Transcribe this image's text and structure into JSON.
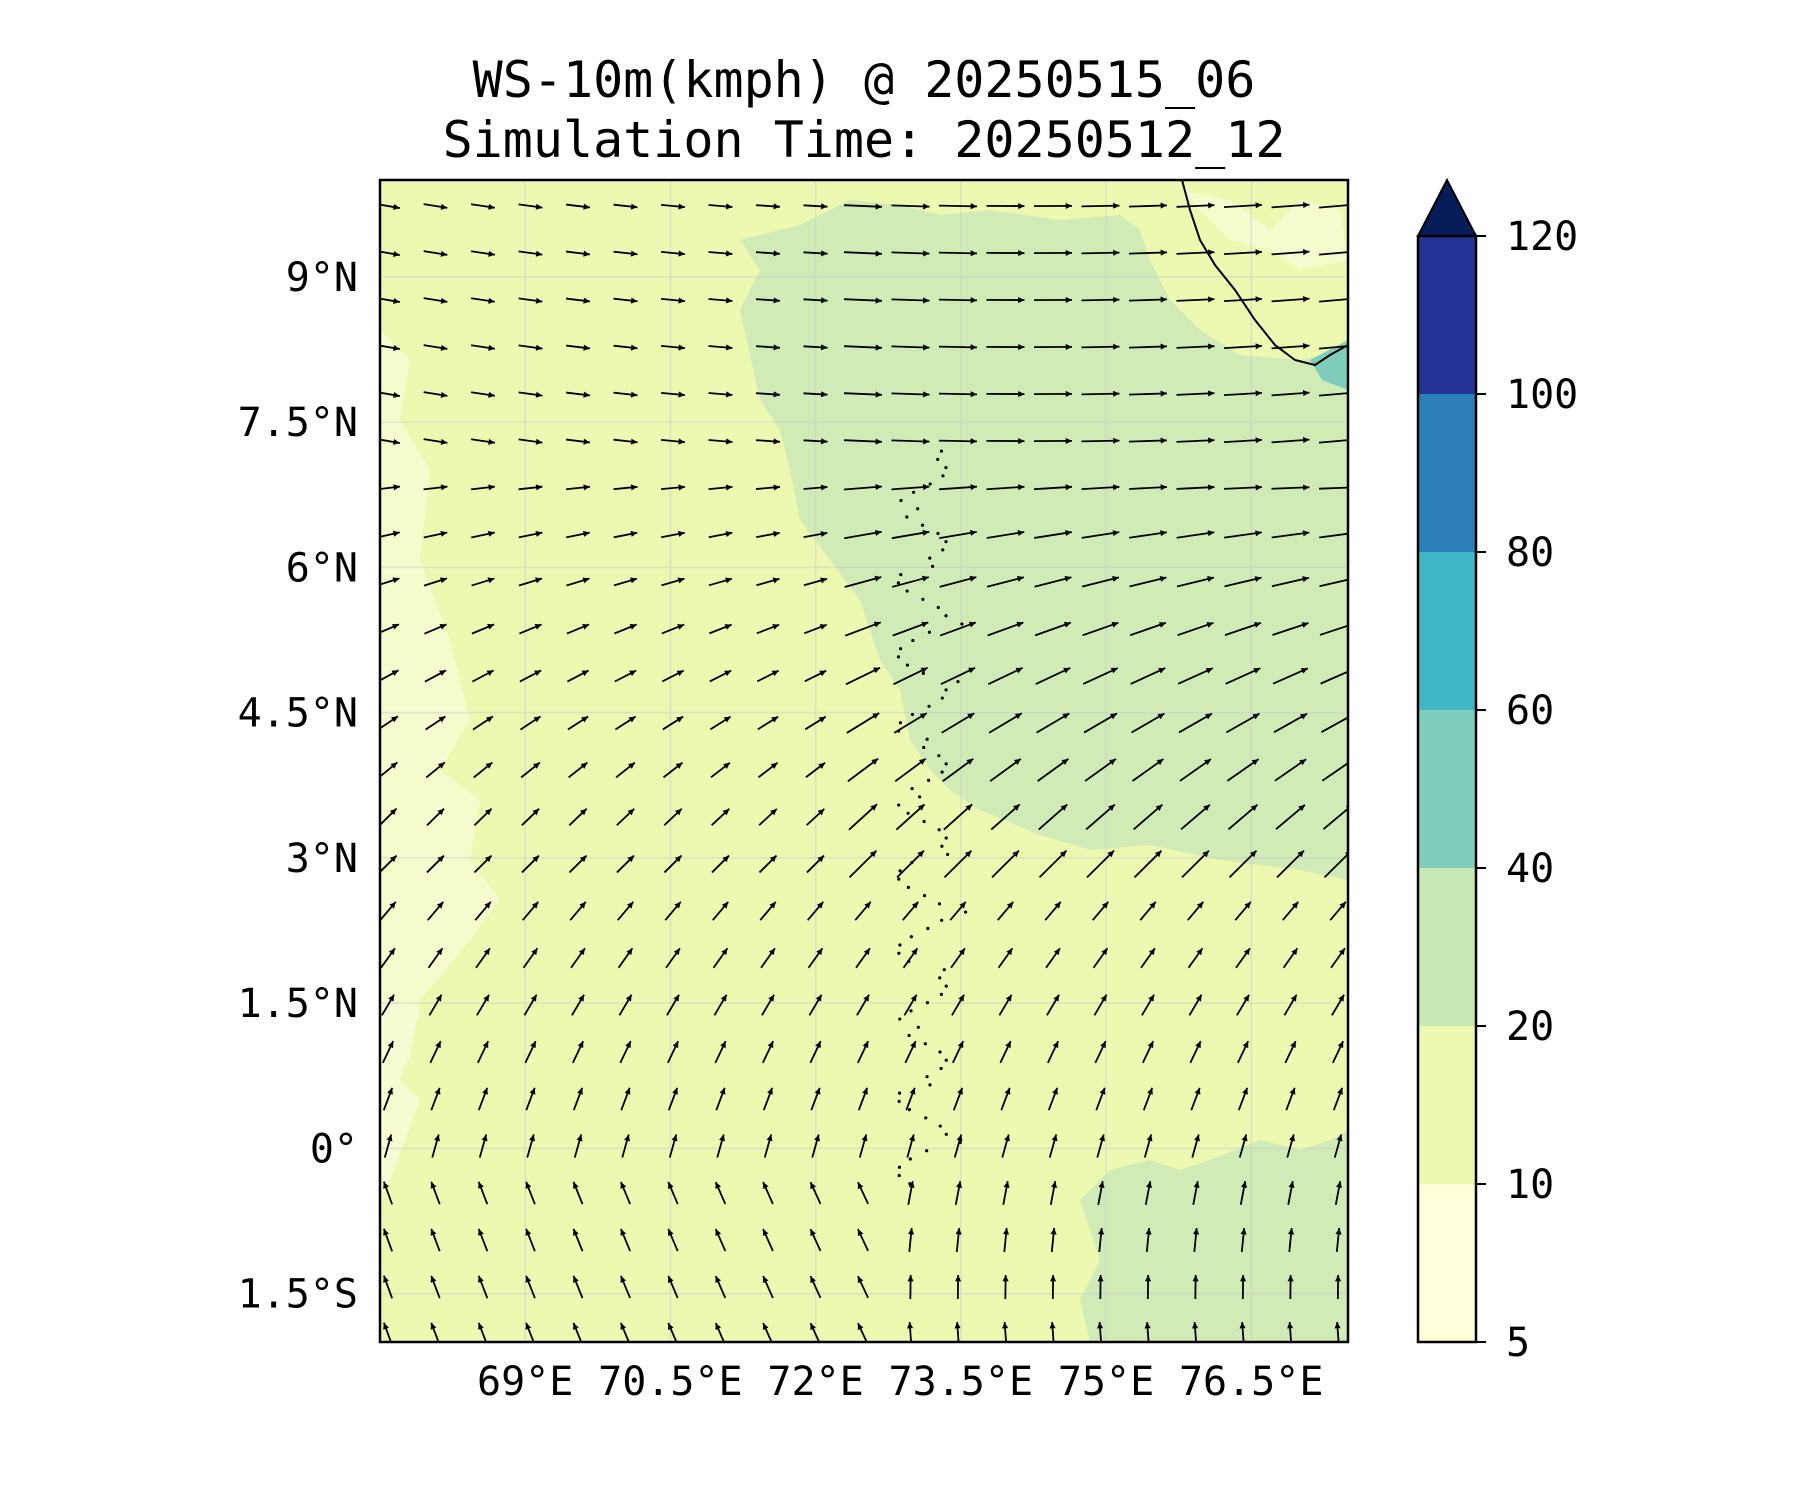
{
  "title": {
    "line1": "WS-10m(kmph) @ 20250515_06",
    "line2": "Simulation Time: 20250512_12"
  },
  "map": {
    "lon_range": [
      67.5,
      77.5
    ],
    "lat_range": [
      -2.0,
      10.0
    ],
    "x_ticks": [
      {
        "value": 69.0,
        "label": "69°E"
      },
      {
        "value": 70.5,
        "label": "70.5°E"
      },
      {
        "value": 72.0,
        "label": "72°E"
      },
      {
        "value": 73.5,
        "label": "73.5°E"
      },
      {
        "value": 75.0,
        "label": "75°E"
      },
      {
        "value": 76.5,
        "label": "76.5°E"
      }
    ],
    "y_ticks": [
      {
        "value": 9.0,
        "label": "9°N"
      },
      {
        "value": 7.5,
        "label": "7.5°N"
      },
      {
        "value": 6.0,
        "label": "6°N"
      },
      {
        "value": 4.5,
        "label": "4.5°N"
      },
      {
        "value": 3.0,
        "label": "3°N"
      },
      {
        "value": 1.5,
        "label": "1.5°N"
      },
      {
        "value": 0.0,
        "label": "0°"
      },
      {
        "value": -1.5,
        "label": "1.5°S"
      }
    ],
    "gridlines": true,
    "background_color": "#edf8b1",
    "wind_vectors": "black quiver arrows: easterly-to-westerly turning; northward in south, northeastward/eastward in north"
  },
  "colorbar": {
    "levels": [
      5,
      10,
      20,
      40,
      60,
      80,
      100,
      120
    ],
    "colors": [
      "#ffffd9",
      "#edf8b1",
      "#c7e9b4",
      "#7fcdbb",
      "#41b6c4",
      "#2c7fb8",
      "#253494"
    ],
    "extend_color": "#081d58",
    "labels": [
      "5",
      "10",
      "20",
      "40",
      "60",
      "80",
      "100",
      "120"
    ]
  }
}
